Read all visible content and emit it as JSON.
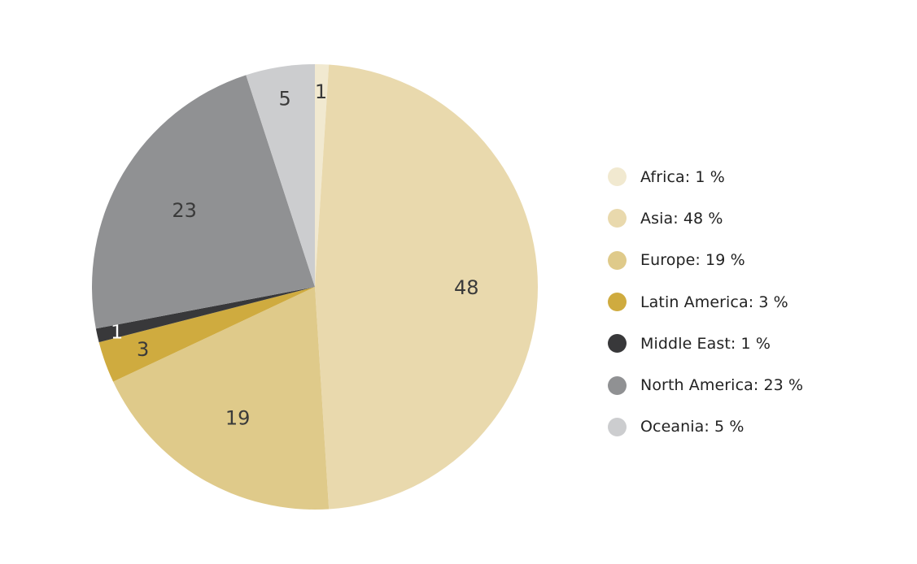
{
  "chart_data": {
    "type": "pie",
    "title": "",
    "categories": [
      "Africa",
      "Asia",
      "Europe",
      "Latin America",
      "Middle East",
      "North America",
      "Oceania"
    ],
    "values": [
      1,
      48,
      19,
      3,
      1,
      23,
      5
    ],
    "unit": "%",
    "colors": [
      "#f1e9d0",
      "#e9d9ad",
      "#dfca8a",
      "#cfab3f",
      "#38383a",
      "#909193",
      "#cccdcf"
    ],
    "slice_labels": [
      "1",
      "48",
      "19",
      "3",
      "1",
      "23",
      "5"
    ],
    "start_angle": "top, clockwise",
    "legend_position": "right"
  },
  "legend": {
    "items": [
      {
        "label": "Africa: 1 %",
        "color": "#f1e9d0"
      },
      {
        "label": "Asia: 48 %",
        "color": "#e9d9ad"
      },
      {
        "label": "Europe: 19 %",
        "color": "#dfca8a"
      },
      {
        "label": "Latin America: 3 %",
        "color": "#cfab3f"
      },
      {
        "label": "Middle East: 1 %",
        "color": "#38383a"
      },
      {
        "label": "North America: 23 %",
        "color": "#909193"
      },
      {
        "label": "Oceania: 5 %",
        "color": "#cccdcf"
      }
    ]
  }
}
